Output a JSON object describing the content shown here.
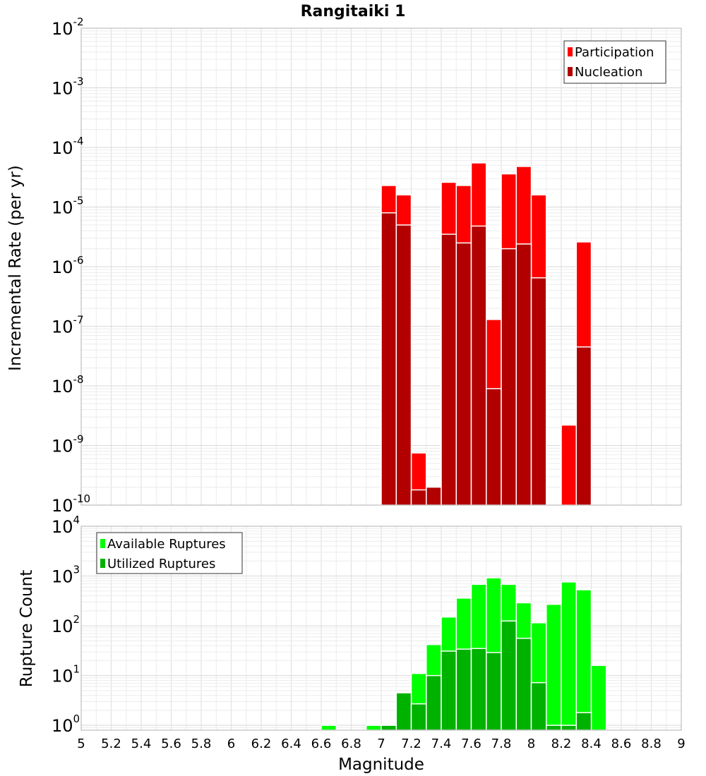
{
  "chart_data": [
    {
      "type": "bar",
      "title": "Rangitaiki 1",
      "ylabel": "Incremental Rate (per yr)",
      "yscale": "log",
      "ylim": [
        1e-10,
        0.01
      ],
      "xlim": [
        5,
        9
      ],
      "y_tick_exponents": [
        "-2",
        "-3",
        "-4",
        "-5",
        "-6",
        "-7",
        "-8",
        "-9",
        "-10"
      ],
      "legend_position": "top-right",
      "legend": [
        {
          "label": "Participation",
          "color": "#ff0000"
        },
        {
          "label": "Nucleation",
          "color": "#b20000"
        }
      ],
      "bin_width": 0.1,
      "series": [
        {
          "name": "Participation",
          "color": "#ff0000",
          "x": [
            7.05,
            7.15,
            7.25,
            7.35,
            7.45,
            7.55,
            7.65,
            7.75,
            7.85,
            7.95,
            8.05,
            8.25,
            8.35
          ],
          "values": [
            2.3e-05,
            1.6e-05,
            7.5e-10,
            2e-10,
            2.6e-05,
            2.3e-05,
            5.5e-05,
            1.3e-07,
            3.6e-05,
            4.8e-05,
            1.6e-05,
            2.2e-09,
            2.6e-06
          ]
        },
        {
          "name": "Nucleation",
          "color": "#b20000",
          "x": [
            7.05,
            7.15,
            7.25,
            7.35,
            7.45,
            7.55,
            7.65,
            7.75,
            7.85,
            7.95,
            8.05,
            8.35
          ],
          "values": [
            8e-06,
            5e-06,
            1.8e-10,
            2e-10,
            3.5e-06,
            2.5e-06,
            4.8e-06,
            9e-09,
            2e-06,
            2.4e-06,
            6.5e-07,
            4.5e-08
          ]
        }
      ]
    },
    {
      "type": "bar",
      "xlabel": "Magnitude",
      "ylabel": "Rupture Count",
      "yscale": "log",
      "ylim": [
        0.8,
        10000
      ],
      "xlim": [
        5,
        9
      ],
      "y_tick_exponents": [
        "4",
        "3",
        "2",
        "1",
        "0"
      ],
      "x_ticks": [
        "5",
        "5.2",
        "5.4",
        "5.6",
        "5.8",
        "6",
        "6.2",
        "6.4",
        "6.6",
        "6.8",
        "7",
        "7.2",
        "7.4",
        "7.6",
        "7.8",
        "8",
        "8.2",
        "8.4",
        "8.6",
        "8.8",
        "9"
      ],
      "legend_position": "top-left",
      "legend": [
        {
          "label": "Available Ruptures",
          "color": "#00ff00"
        },
        {
          "label": "Utilized Ruptures",
          "color": "#00b200"
        }
      ],
      "bin_width": 0.1,
      "series": [
        {
          "name": "Available Ruptures",
          "color": "#00ff00",
          "x": [
            6.65,
            6.95,
            7.05,
            7.15,
            7.25,
            7.35,
            7.45,
            7.55,
            7.65,
            7.75,
            7.85,
            7.95,
            8.05,
            8.15,
            8.25,
            8.35,
            8.45
          ],
          "values": [
            1,
            1,
            1,
            4.5,
            11,
            42,
            150,
            360,
            680,
            920,
            680,
            290,
            115,
            270,
            760,
            530,
            16
          ]
        },
        {
          "name": "Utilized Ruptures",
          "color": "#00b200",
          "x": [
            7.05,
            7.15,
            7.25,
            7.35,
            7.45,
            7.55,
            7.65,
            7.75,
            7.85,
            7.95,
            8.05,
            8.15,
            8.25,
            8.35
          ],
          "values": [
            1,
            4.5,
            2.7,
            10,
            31,
            34,
            35,
            29,
            125,
            56,
            7.2,
            1,
            1,
            1.8
          ]
        }
      ]
    }
  ]
}
